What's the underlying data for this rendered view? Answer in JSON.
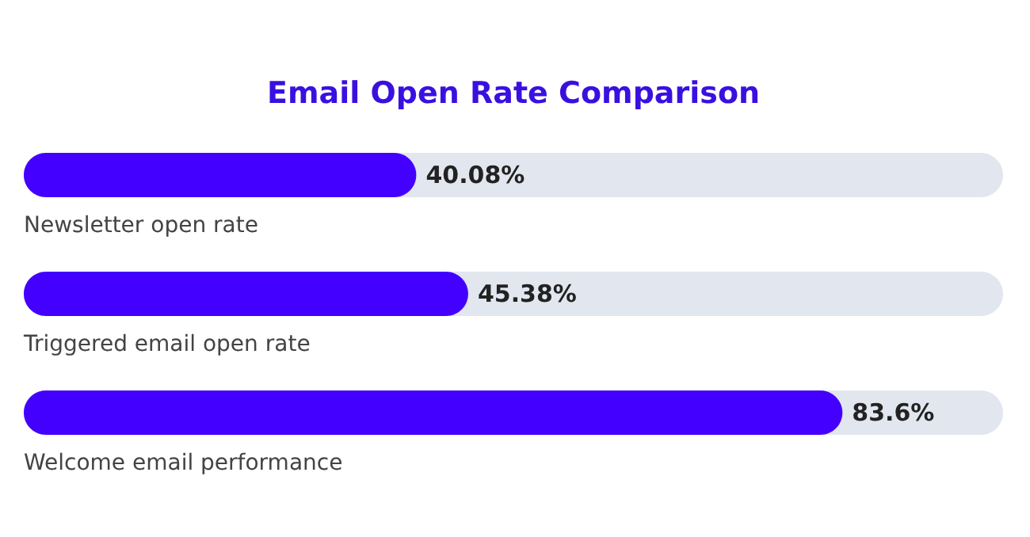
{
  "chart_data": {
    "type": "bar",
    "orientation": "horizontal",
    "title": "Email Open Rate Comparison",
    "categories": [
      "Newsletter open rate",
      "Triggered email open rate",
      "Welcome email performance"
    ],
    "values": [
      40.08,
      45.38,
      83.6
    ],
    "value_labels": [
      "40.08%",
      "45.38%",
      "83.6%"
    ],
    "color": "#4300ff",
    "xlim": [
      0,
      100
    ],
    "tick_labels": false
  }
}
